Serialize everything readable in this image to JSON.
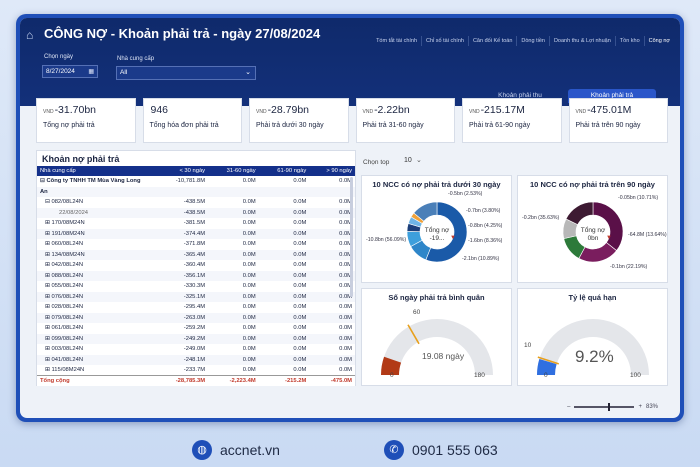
{
  "header": {
    "title": "CÔNG NỢ - Khoản phải trả - ngày 27/08/2024",
    "nav": [
      "Tóm tắt tài chính",
      "Chỉ số tài chính",
      "Cân đối Kế toán",
      "Dòng tiền",
      "Doanh thu & Lợi nhuận",
      "Tồn kho",
      "Công nợ"
    ],
    "date_label": "Chọn ngày",
    "date_value": "8/27/2024",
    "supplier_label": "Nhà cung cấp",
    "supplier_value": "All",
    "tabs": [
      "Khoản phải thu",
      "Khoản phải trả"
    ]
  },
  "kpis": [
    {
      "currency": "VND",
      "value": "-31.70bn",
      "label": "Tổng nợ phải trả"
    },
    {
      "currency": "",
      "value": "946",
      "label": "Tổng hóa đơn phải trả"
    },
    {
      "currency": "VND",
      "value": "-28.79bn",
      "label": "Phải trả dưới 30 ngày"
    },
    {
      "currency": "VND",
      "value": "-2.22bn",
      "label": "Phải trả 31-60 ngày"
    },
    {
      "currency": "VND",
      "value": "-215.17M",
      "label": "Phải trả 61-90 ngày"
    },
    {
      "currency": "VND",
      "value": "-475.01M",
      "label": "Phải trả trên 90 ngày"
    }
  ],
  "table": {
    "title": "Khoản nợ phải trả",
    "headers": [
      "Nhà cung cấp",
      "< 30 ngày",
      "31-60 ngày",
      "61-90 ngày",
      "> 90 ngày"
    ],
    "rows": [
      {
        "level": 0,
        "label": "⊟  Công ty TNHH TM Mùa Vàng Long",
        "c": [
          "-10,781.8M",
          "0.0M",
          "0.0M",
          "0.0M"
        ]
      },
      {
        "level": 0,
        "label": "     An",
        "c": [
          "",
          "",
          "",
          ""
        ]
      },
      {
        "level": 1,
        "label": "⊟  082/08L24N",
        "c": [
          "-438.5M",
          "0.0M",
          "0.0M",
          "0.0M"
        ]
      },
      {
        "level": 2,
        "label": "22/08/2024",
        "c": [
          "-438.5M",
          "0.0M",
          "0.0M",
          "0.0M"
        ]
      },
      {
        "level": 1,
        "label": "⊞  170/08M24N",
        "c": [
          "-381.5M",
          "0.0M",
          "0.0M",
          "0.0M"
        ]
      },
      {
        "level": 1,
        "label": "⊞  191/08M24N",
        "c": [
          "-374.4M",
          "0.0M",
          "0.0M",
          "0.0M"
        ]
      },
      {
        "level": 1,
        "label": "⊞  060/08L24N",
        "c": [
          "-371.8M",
          "0.0M",
          "0.0M",
          "0.0M"
        ]
      },
      {
        "level": 1,
        "label": "⊞  134/08M24N",
        "c": [
          "-365.4M",
          "0.0M",
          "0.0M",
          "0.0M"
        ]
      },
      {
        "level": 1,
        "label": "⊞  042/08L24N",
        "c": [
          "-360.4M",
          "0.0M",
          "0.0M",
          "0.0M"
        ]
      },
      {
        "level": 1,
        "label": "⊞  088/08L24N",
        "c": [
          "-356.1M",
          "0.0M",
          "0.0M",
          "0.0M"
        ]
      },
      {
        "level": 1,
        "label": "⊞  055/08L24N",
        "c": [
          "-330.3M",
          "0.0M",
          "0.0M",
          "0.0M"
        ]
      },
      {
        "level": 1,
        "label": "⊞  076/08L24N",
        "c": [
          "-325.1M",
          "0.0M",
          "0.0M",
          "0.0M"
        ]
      },
      {
        "level": 1,
        "label": "⊞  028/08L24N",
        "c": [
          "-295.4M",
          "0.0M",
          "0.0M",
          "0.0M"
        ]
      },
      {
        "level": 1,
        "label": "⊞  079/08L24N",
        "c": [
          "-263.0M",
          "0.0M",
          "0.0M",
          "0.0M"
        ]
      },
      {
        "level": 1,
        "label": "⊞  061/08L24N",
        "c": [
          "-259.2M",
          "0.0M",
          "0.0M",
          "0.0M"
        ]
      },
      {
        "level": 1,
        "label": "⊞  099/08L24N",
        "c": [
          "-249.2M",
          "0.0M",
          "0.0M",
          "0.0M"
        ]
      },
      {
        "level": 1,
        "label": "⊞  003/08L24N",
        "c": [
          "-249.0M",
          "0.0M",
          "0.0M",
          "0.0M"
        ]
      },
      {
        "level": 1,
        "label": "⊞  041/08L24N",
        "c": [
          "-248.1M",
          "0.0M",
          "0.0M",
          "0.0M"
        ]
      },
      {
        "level": 1,
        "label": "⊞  115/08M24N",
        "c": [
          "-233.7M",
          "0.0M",
          "0.0M",
          "0.0M"
        ]
      }
    ],
    "total": {
      "label": "Tổng cộng",
      "c": [
        "-28,785.3M",
        "-2,223.4M",
        "-215.2M",
        "-475.0M"
      ]
    }
  },
  "top_selector": {
    "label": "Chọn top",
    "value": "10"
  },
  "donut1": {
    "title": "10 NCC có nợ phải trả dưới 30 ngày",
    "center": "Tổng nợ",
    "center_sub": "-19...",
    "labels": [
      {
        "text": "-0.5bn (2.53%)"
      },
      {
        "text": "-0.7bn (3.80%)"
      },
      {
        "text": "-0.8bn (4.25%)"
      },
      {
        "text": "-1.6bn (8.36%)"
      },
      {
        "text": "-2.1bn (10.89%)"
      },
      {
        "text": "-10.8bn (56.09%)"
      }
    ]
  },
  "donut2": {
    "title": "10 NCC có nợ phải trả trên 90 ngày",
    "center": "Tổng nợ",
    "center_sub": "0bn",
    "labels": [
      {
        "text": "-0.05bn (10.71%)"
      },
      {
        "text": "-0.2bn (35.63%)"
      },
      {
        "text": "-64.8M (13.64%)"
      },
      {
        "text": "-0.1bn (22.19%)"
      }
    ]
  },
  "gauge1": {
    "title": "Số ngày phải trả bình quân",
    "value_text": "19.08 ngày",
    "min": "0",
    "max": "180",
    "target": "60",
    "value": 19.08,
    "range_max": 180
  },
  "gauge2": {
    "title": "Tỷ lệ quá hạn",
    "value_text": "9.2%",
    "min": "0",
    "max": "100",
    "target": "10",
    "value": 9.2,
    "range_max": 100
  },
  "zoom": "83%",
  "footer": {
    "site": "accnet.vn",
    "phone": "0901 555 063"
  },
  "colors": {
    "header": "#13307a",
    "accent": "#2a56c9",
    "gauge_fill": "#b23a16",
    "gauge_fill2": "#2f6fe0"
  }
}
